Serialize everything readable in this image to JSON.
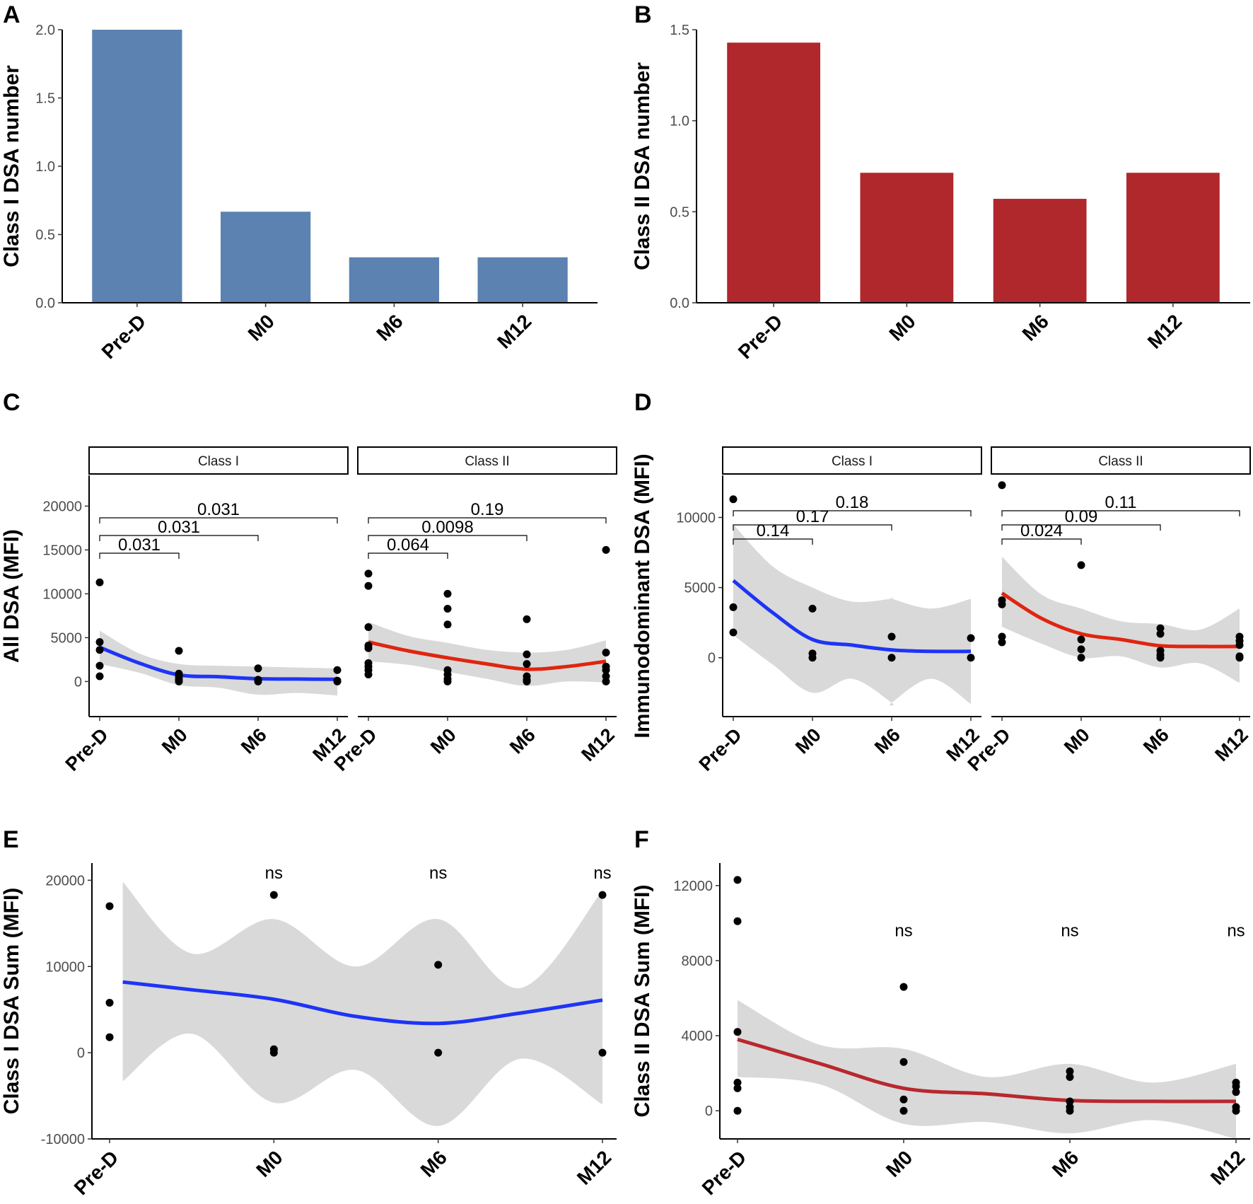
{
  "colors": {
    "blue_bar": "#5B82B0",
    "red_bar": "#B0272C",
    "blue_line": "#1E34F5",
    "red_line": "#E0250F",
    "dark_red_line": "#B8282E",
    "ribbon": "#D9D9D9",
    "point": "#000000"
  },
  "chart_data": [
    {
      "panel": "A",
      "type": "bar",
      "title": "",
      "categories": [
        "Pre-D",
        "M0",
        "M6",
        "M12"
      ],
      "values": [
        2.0,
        0.667,
        0.333,
        0.333
      ],
      "xlabel": "",
      "ylabel": "Class I DSA number",
      "ylim": [
        0,
        2.0
      ],
      "yticks": [
        0.0,
        0.5,
        1.0,
        1.5,
        2.0
      ],
      "yticklabels": [
        "0.0",
        "0.5",
        "1.0",
        "1.5",
        "2.0"
      ]
    },
    {
      "panel": "B",
      "type": "bar",
      "title": "",
      "categories": [
        "Pre-D",
        "M0",
        "M6",
        "M12"
      ],
      "values": [
        1.429,
        0.714,
        0.571,
        0.714
      ],
      "xlabel": "",
      "ylabel": "Class II DSA number",
      "ylim": [
        0,
        1.5
      ],
      "yticks": [
        0.0,
        0.5,
        1.0,
        1.5
      ],
      "yticklabels": [
        "0.0",
        "0.5",
        "1.0",
        "1.5"
      ]
    },
    {
      "panel": "C",
      "type": "scatter",
      "ylabel": "All DSA (MFI)",
      "categories": [
        "Pre-D",
        "M0",
        "M6",
        "M12"
      ],
      "ylim": [
        -4000,
        23500
      ],
      "yticks": [
        0,
        5000,
        10000,
        15000,
        20000
      ],
      "yticklabels": [
        "0",
        "5000",
        "10000",
        "15000",
        "20000"
      ],
      "facets": [
        {
          "label": "Class I",
          "points": [
            [
              0,
              11300
            ],
            [
              0,
              4500
            ],
            [
              0,
              3600
            ],
            [
              0,
              1800
            ],
            [
              0,
              600
            ],
            [
              1,
              3500
            ],
            [
              1,
              900
            ],
            [
              1,
              600
            ],
            [
              1,
              300
            ],
            [
              1,
              100
            ],
            [
              1,
              0
            ],
            [
              2,
              1500
            ],
            [
              2,
              200
            ],
            [
              2,
              0
            ],
            [
              3,
              1300
            ],
            [
              3,
              100
            ],
            [
              3,
              0
            ]
          ],
          "smooth": [
            [
              0,
              3900
            ],
            [
              0.5,
              2100
            ],
            [
              1,
              750
            ],
            [
              1.5,
              550
            ],
            [
              2,
              320
            ],
            [
              2.5,
              280
            ],
            [
              3,
              250
            ]
          ],
          "ribbon": [
            [
              0,
              5800,
              2000
            ],
            [
              0.5,
              3200,
              1000
            ],
            [
              1,
              2000,
              -400
            ],
            [
              1.5,
              1800,
              -700
            ],
            [
              2,
              1700,
              -1500
            ],
            [
              2.5,
              1600,
              -1300
            ],
            [
              3,
              1500,
              -1600
            ]
          ],
          "brackets": [
            [
              0,
              1,
              "0.031"
            ],
            [
              0,
              2,
              "0.031"
            ],
            [
              0,
              3,
              "0.031"
            ]
          ]
        },
        {
          "label": "Class II",
          "points": [
            [
              0,
              12300
            ],
            [
              0,
              10900
            ],
            [
              0,
              6200
            ],
            [
              0,
              4100
            ],
            [
              0,
              3800
            ],
            [
              0,
              2100
            ],
            [
              0,
              1700
            ],
            [
              0,
              1300
            ],
            [
              0,
              800
            ],
            [
              1,
              10000
            ],
            [
              1,
              8300
            ],
            [
              1,
              6500
            ],
            [
              1,
              1300
            ],
            [
              1,
              800
            ],
            [
              1,
              300
            ],
            [
              1,
              0
            ],
            [
              2,
              7100
            ],
            [
              2,
              3100
            ],
            [
              2,
              2000
            ],
            [
              2,
              600
            ],
            [
              2,
              200
            ],
            [
              2,
              0
            ],
            [
              3,
              15000
            ],
            [
              3,
              3300
            ],
            [
              3,
              1700
            ],
            [
              3,
              1300
            ],
            [
              3,
              600
            ],
            [
              3,
              0
            ]
          ],
          "smooth": [
            [
              0,
              4500
            ],
            [
              0.5,
              3500
            ],
            [
              1,
              2700
            ],
            [
              1.5,
              2000
            ],
            [
              2,
              1400
            ],
            [
              2.5,
              1700
            ],
            [
              3,
              2300
            ]
          ],
          "ribbon": [
            [
              0,
              6800,
              2300
            ],
            [
              0.5,
              5200,
              1900
            ],
            [
              1,
              4400,
              1100
            ],
            [
              1.5,
              3600,
              300
            ],
            [
              2,
              3300,
              -500
            ],
            [
              2.5,
              3600,
              0
            ],
            [
              3,
              4700,
              -100
            ]
          ],
          "brackets": [
            [
              0,
              1,
              "0.064"
            ],
            [
              0,
              2,
              "0.0098"
            ],
            [
              0,
              3,
              "0.19"
            ]
          ]
        }
      ]
    },
    {
      "panel": "D",
      "type": "scatter",
      "ylabel": "Immunodominant DSA (MFI)",
      "categories": [
        "Pre-D",
        "M0",
        "M6",
        "M12"
      ],
      "ylim": [
        -4200,
        13000
      ],
      "yticks": [
        0,
        5000,
        10000
      ],
      "yticklabels": [
        "0",
        "5000",
        "10000"
      ],
      "facets": [
        {
          "label": "Class I",
          "points": [
            [
              0,
              11300
            ],
            [
              0,
              3600
            ],
            [
              0,
              1800
            ],
            [
              1,
              3500
            ],
            [
              1,
              300
            ],
            [
              1,
              0
            ],
            [
              2,
              1500
            ],
            [
              2,
              0
            ],
            [
              3,
              1400
            ],
            [
              3,
              0
            ]
          ],
          "smooth": [
            [
              0,
              5500
            ],
            [
              0.5,
              3200
            ],
            [
              1,
              1300
            ],
            [
              1.5,
              900
            ],
            [
              2,
              550
            ],
            [
              2.5,
              450
            ],
            [
              3,
              450
            ]
          ],
          "ribbon": [
            [
              0,
              9500,
              1600
            ],
            [
              0.5,
              6500,
              -500
            ],
            [
              1,
              5000,
              -2500
            ],
            [
              1.5,
              4000,
              -1500
            ],
            [
              2,
              4200,
              -3200
            ],
            [
              2,
              4200,
              -3200
            ],
            [
              2.5,
              3500,
              -1500
            ],
            [
              3,
              4200,
              -3300
            ]
          ],
          "brackets": [
            [
              0,
              1,
              "0.14"
            ],
            [
              0,
              2,
              "0.17"
            ],
            [
              0,
              3,
              "0.18"
            ]
          ]
        },
        {
          "label": "Class II",
          "points": [
            [
              0,
              12300
            ],
            [
              0,
              4100
            ],
            [
              0,
              3800
            ],
            [
              0,
              1500
            ],
            [
              0,
              1100
            ],
            [
              1,
              6600
            ],
            [
              1,
              1300
            ],
            [
              1,
              600
            ],
            [
              1,
              0
            ],
            [
              2,
              2100
            ],
            [
              2,
              1700
            ],
            [
              2,
              500
            ],
            [
              2,
              200
            ],
            [
              2,
              0
            ],
            [
              3,
              1500
            ],
            [
              3,
              1200
            ],
            [
              3,
              900
            ],
            [
              3,
              100
            ],
            [
              3,
              0
            ]
          ],
          "smooth": [
            [
              0,
              4600
            ],
            [
              0.5,
              2800
            ],
            [
              1,
              1700
            ],
            [
              1.5,
              1300
            ],
            [
              2,
              850
            ],
            [
              2.5,
              800
            ],
            [
              3,
              800
            ]
          ],
          "ribbon": [
            [
              0,
              7200,
              2200
            ],
            [
              0.5,
              4500,
              1000
            ],
            [
              1,
              3500,
              0
            ],
            [
              1.5,
              2600,
              100
            ],
            [
              2,
              2400,
              -700
            ],
            [
              2.5,
              2000,
              -400
            ],
            [
              3,
              3500,
              -1800
            ]
          ],
          "brackets": [
            [
              0,
              1,
              "0.024"
            ],
            [
              0,
              2,
              "0.09"
            ],
            [
              0,
              3,
              "0.11"
            ]
          ]
        }
      ]
    },
    {
      "panel": "E",
      "type": "scatter",
      "ylabel": "Class I DSA Sum  (MFI)",
      "categories": [
        "Pre-D",
        "M0",
        "M6",
        "M12"
      ],
      "ylim": [
        -10000,
        22000
      ],
      "yticks": [
        -10000,
        0,
        10000,
        20000
      ],
      "yticklabels": [
        "-10000",
        "0",
        "10000",
        "20000"
      ],
      "points": [
        [
          0,
          17000
        ],
        [
          0,
          5800
        ],
        [
          0,
          1800
        ],
        [
          1,
          18300
        ],
        [
          1,
          400
        ],
        [
          1,
          0
        ],
        [
          2,
          10200
        ],
        [
          2,
          0
        ],
        [
          3,
          18300
        ],
        [
          3,
          0
        ]
      ],
      "smooth": [
        [
          0.08,
          8200
        ],
        [
          0.5,
          7300
        ],
        [
          1,
          6200
        ],
        [
          1.5,
          4200
        ],
        [
          2,
          3400
        ],
        [
          2.5,
          4600
        ],
        [
          3,
          6100
        ]
      ],
      "ribbon": [
        [
          0.08,
          19800,
          -3300
        ],
        [
          0.5,
          11500,
          2200
        ],
        [
          1,
          15500,
          -5800
        ],
        [
          1.5,
          10000,
          -2000
        ],
        [
          2,
          15500,
          -8500
        ],
        [
          2.5,
          7500,
          -700
        ],
        [
          3,
          18800,
          -6000
        ]
      ],
      "annotations": [
        [
          1,
          "ns"
        ],
        [
          2,
          "ns"
        ],
        [
          3,
          "ns"
        ]
      ],
      "annotation_y": 20200
    },
    {
      "panel": "F",
      "type": "scatter",
      "ylabel": "Class II DSA Sum  (MFI)",
      "categories": [
        "Pre-D",
        "M0",
        "M6",
        "M12"
      ],
      "ylim": [
        -1500,
        13200
      ],
      "yticks": [
        0,
        4000,
        8000,
        12000
      ],
      "yticklabels": [
        "0",
        "4000",
        "8000",
        "12000"
      ],
      "points": [
        [
          0,
          12300
        ],
        [
          0,
          10100
        ],
        [
          0,
          4200
        ],
        [
          0,
          1500
        ],
        [
          0,
          1200
        ],
        [
          0,
          0
        ],
        [
          1,
          6600
        ],
        [
          1,
          2600
        ],
        [
          1,
          600
        ],
        [
          1,
          0
        ],
        [
          2,
          2100
        ],
        [
          2,
          1800
        ],
        [
          2,
          500
        ],
        [
          2,
          200
        ],
        [
          2,
          0
        ],
        [
          3,
          1500
        ],
        [
          3,
          1300
        ],
        [
          3,
          1000
        ],
        [
          3,
          200
        ],
        [
          3,
          0
        ]
      ],
      "smooth": [
        [
          0,
          3800
        ],
        [
          0.5,
          2500
        ],
        [
          1,
          1200
        ],
        [
          1.5,
          900
        ],
        [
          2,
          550
        ],
        [
          2.5,
          500
        ],
        [
          3,
          500
        ]
      ],
      "ribbon": [
        [
          0,
          5900,
          1800
        ],
        [
          0.5,
          3500,
          1400
        ],
        [
          1,
          3300,
          -700
        ],
        [
          1.5,
          1800,
          -600
        ],
        [
          2,
          2500,
          -1200
        ],
        [
          2.5,
          1500,
          -500
        ],
        [
          3,
          2500,
          -1500
        ]
      ],
      "annotations": [
        [
          1,
          "ns"
        ],
        [
          2,
          "ns"
        ],
        [
          3,
          "ns"
        ]
      ],
      "annotation_y": 9300
    }
  ]
}
